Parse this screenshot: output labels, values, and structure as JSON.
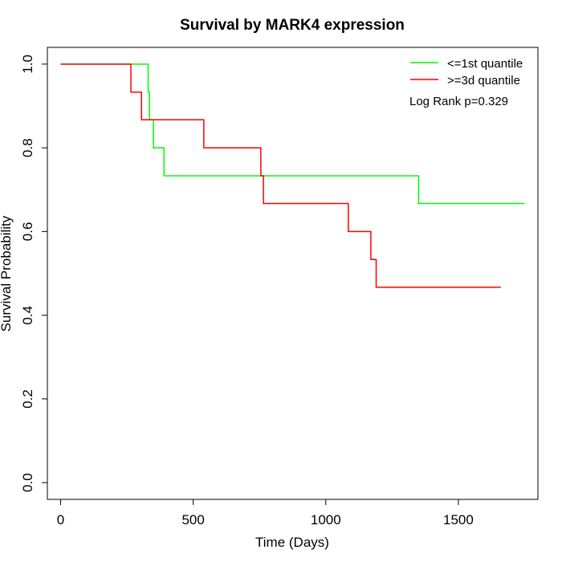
{
  "chart_data": {
    "type": "line",
    "title": "Survival by MARK4 expression",
    "xlabel": "Time (Days)",
    "ylabel": "Survival Probability",
    "xlim": [
      -50,
      1800
    ],
    "ylim": [
      -0.04,
      1.04
    ],
    "xticks": [
      0,
      500,
      1000,
      1500
    ],
    "yticks": [
      0.0,
      0.2,
      0.4,
      0.6,
      0.8,
      1.0
    ],
    "xtick_labels": [
      "0",
      "500",
      "1000",
      "1500"
    ],
    "ytick_labels": [
      "0.0",
      "0.2",
      "0.4",
      "0.6",
      "0.8",
      "1.0"
    ],
    "grid": false,
    "legend_position": "top-right",
    "annotation": "Log Rank p=0.329",
    "series": [
      {
        "name": "<=1st quantile",
        "color": "#00ff00",
        "step": true,
        "x": [
          0,
          330,
          335,
          350,
          390,
          1350,
          1750
        ],
        "y": [
          1.0,
          0.933,
          0.867,
          0.8,
          0.733,
          0.667,
          0.667
        ]
      },
      {
        "name": ">=3d quantile",
        "color": "#ff0000",
        "step": true,
        "x": [
          0,
          265,
          305,
          540,
          755,
          765,
          1085,
          1170,
          1190,
          1660
        ],
        "y": [
          1.0,
          0.933,
          0.867,
          0.8,
          0.733,
          0.667,
          0.6,
          0.533,
          0.467,
          0.467
        ]
      }
    ]
  }
}
